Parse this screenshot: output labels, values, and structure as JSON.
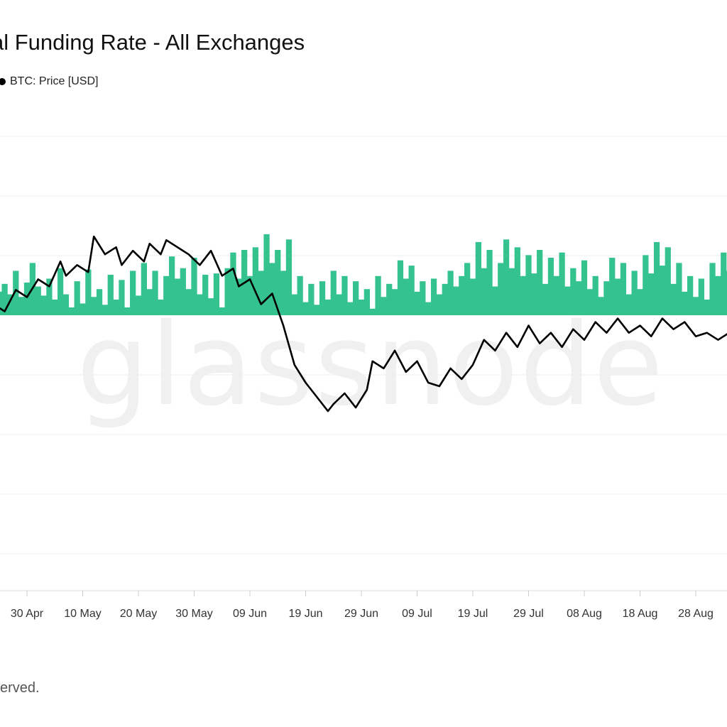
{
  "header": {
    "title": "al Funding Rate - All Exchanges"
  },
  "footer": {
    "text": "served."
  },
  "watermark": {
    "text": "glassnode"
  },
  "chart_data": {
    "type": "bar",
    "series": [
      {
        "name": "BTC: Price [USD]",
        "kind": "line",
        "color": "#000000",
        "points": [
          [
            -14,
            0.79
          ],
          [
            -12,
            0.8
          ],
          [
            -10,
            0.73
          ],
          [
            -9,
            0.76
          ],
          [
            -7,
            0.7
          ],
          [
            -6,
            0.74
          ],
          [
            -4,
            0.72
          ],
          [
            -2,
            0.78
          ],
          [
            0,
            0.76
          ],
          [
            2,
            0.81
          ],
          [
            4,
            0.79
          ],
          [
            6,
            0.86
          ],
          [
            7,
            0.82
          ],
          [
            9,
            0.85
          ],
          [
            11,
            0.83
          ],
          [
            12,
            0.93
          ],
          [
            14,
            0.88
          ],
          [
            16,
            0.9
          ],
          [
            17,
            0.85
          ],
          [
            19,
            0.89
          ],
          [
            21,
            0.86
          ],
          [
            22,
            0.91
          ],
          [
            24,
            0.88
          ],
          [
            25,
            0.92
          ],
          [
            27,
            0.9
          ],
          [
            29,
            0.88
          ],
          [
            31,
            0.85
          ],
          [
            33,
            0.89
          ],
          [
            35,
            0.82
          ],
          [
            37,
            0.84
          ],
          [
            38,
            0.79
          ],
          [
            40,
            0.81
          ],
          [
            42,
            0.74
          ],
          [
            44,
            0.77
          ],
          [
            46,
            0.68
          ],
          [
            48,
            0.57
          ],
          [
            50,
            0.52
          ],
          [
            52,
            0.48
          ],
          [
            54,
            0.44
          ],
          [
            55,
            0.46
          ],
          [
            57,
            0.49
          ],
          [
            59,
            0.45
          ],
          [
            61,
            0.5
          ],
          [
            62,
            0.58
          ],
          [
            64,
            0.56
          ],
          [
            66,
            0.61
          ],
          [
            68,
            0.55
          ],
          [
            70,
            0.58
          ],
          [
            72,
            0.52
          ],
          [
            74,
            0.51
          ],
          [
            76,
            0.56
          ],
          [
            78,
            0.53
          ],
          [
            80,
            0.57
          ],
          [
            82,
            0.64
          ],
          [
            84,
            0.61
          ],
          [
            86,
            0.66
          ],
          [
            88,
            0.62
          ],
          [
            90,
            0.68
          ],
          [
            92,
            0.63
          ],
          [
            94,
            0.66
          ],
          [
            96,
            0.62
          ],
          [
            98,
            0.67
          ],
          [
            100,
            0.64
          ],
          [
            102,
            0.69
          ],
          [
            104,
            0.66
          ],
          [
            106,
            0.7
          ],
          [
            108,
            0.66
          ],
          [
            110,
            0.68
          ],
          [
            112,
            0.65
          ],
          [
            114,
            0.7
          ],
          [
            116,
            0.67
          ],
          [
            118,
            0.69
          ],
          [
            120,
            0.65
          ],
          [
            122,
            0.66
          ],
          [
            124,
            0.64
          ],
          [
            126,
            0.66
          ],
          [
            128,
            0.63
          ],
          [
            129,
            0.67
          ],
          [
            131,
            0.63
          ],
          [
            133,
            0.62
          ],
          [
            135,
            0.79
          ],
          [
            137,
            0.82
          ],
          [
            139,
            0.86
          ],
          [
            141,
            0.82
          ],
          [
            143,
            0.85
          ],
          [
            145,
            0.8
          ],
          [
            147,
            0.83
          ],
          [
            149,
            0.79
          ],
          [
            151,
            0.8
          ]
        ]
      },
      {
        "name": "Funding Rate",
        "kind": "bar",
        "positive_color": "#34c38f",
        "negative_color": "#ef4444",
        "points": [
          [
            -14,
            0.18
          ],
          [
            -13,
            0.12
          ],
          [
            -12,
            0.22
          ],
          [
            -11,
            0.08
          ],
          [
            -10,
            0.3
          ],
          [
            -9,
            0.1
          ],
          [
            -8,
            0.34
          ],
          [
            -7,
            0.05
          ],
          [
            -6,
            0.36
          ],
          [
            -5,
            0.18
          ],
          [
            -4,
            0.24
          ],
          [
            -3,
            0.16
          ],
          [
            -2,
            0.34
          ],
          [
            -1,
            0.14
          ],
          [
            0,
            0.25
          ],
          [
            1,
            0.4
          ],
          [
            2,
            0.22
          ],
          [
            3,
            0.15
          ],
          [
            4,
            0.28
          ],
          [
            5,
            0.12
          ],
          [
            6,
            0.36
          ],
          [
            7,
            0.16
          ],
          [
            8,
            0.06
          ],
          [
            9,
            0.26
          ],
          [
            10,
            0.09
          ],
          [
            11,
            0.35
          ],
          [
            12,
            0.14
          ],
          [
            13,
            0.2
          ],
          [
            14,
            0.08
          ],
          [
            15,
            0.31
          ],
          [
            16,
            0.12
          ],
          [
            17,
            0.27
          ],
          [
            18,
            0.06
          ],
          [
            19,
            0.34
          ],
          [
            20,
            0.15
          ],
          [
            21,
            0.4
          ],
          [
            22,
            0.2
          ],
          [
            23,
            0.34
          ],
          [
            24,
            0.12
          ],
          [
            25,
            0.3
          ],
          [
            26,
            0.45
          ],
          [
            27,
            0.28
          ],
          [
            28,
            0.36
          ],
          [
            29,
            0.2
          ],
          [
            30,
            0.44
          ],
          [
            31,
            0.16
          ],
          [
            32,
            0.31
          ],
          [
            33,
            0.13
          ],
          [
            34,
            0.32
          ],
          [
            35,
            0.06
          ],
          [
            36,
            0.36
          ],
          [
            37,
            0.48
          ],
          [
            38,
            0.28
          ],
          [
            39,
            0.5
          ],
          [
            40,
            0.3
          ],
          [
            41,
            0.52
          ],
          [
            42,
            0.34
          ],
          [
            43,
            0.62
          ],
          [
            44,
            0.4
          ],
          [
            45,
            0.5
          ],
          [
            46,
            0.34
          ],
          [
            47,
            0.58
          ],
          [
            48,
            0.16
          ],
          [
            49,
            0.3
          ],
          [
            50,
            0.1
          ],
          [
            51,
            0.24
          ],
          [
            52,
            0.08
          ],
          [
            53,
            0.26
          ],
          [
            54,
            0.12
          ],
          [
            55,
            0.34
          ],
          [
            56,
            0.16
          ],
          [
            57,
            0.3
          ],
          [
            58,
            0.1
          ],
          [
            59,
            0.26
          ],
          [
            60,
            0.12
          ],
          [
            61,
            0.2
          ],
          [
            62,
            0.05
          ],
          [
            63,
            0.3
          ],
          [
            64,
            0.14
          ],
          [
            65,
            0.24
          ],
          [
            66,
            0.2
          ],
          [
            67,
            0.42
          ],
          [
            68,
            0.28
          ],
          [
            69,
            0.38
          ],
          [
            70,
            0.18
          ],
          [
            71,
            0.26
          ],
          [
            72,
            0.1
          ],
          [
            73,
            0.28
          ],
          [
            74,
            0.16
          ],
          [
            75,
            0.24
          ],
          [
            76,
            0.34
          ],
          [
            77,
            0.22
          ],
          [
            78,
            0.3
          ],
          [
            79,
            0.4
          ],
          [
            80,
            0.28
          ],
          [
            81,
            0.56
          ],
          [
            82,
            0.36
          ],
          [
            83,
            0.5
          ],
          [
            84,
            0.22
          ],
          [
            85,
            0.4
          ],
          [
            86,
            0.58
          ],
          [
            87,
            0.36
          ],
          [
            88,
            0.52
          ],
          [
            89,
            0.3
          ],
          [
            90,
            0.46
          ],
          [
            91,
            0.32
          ],
          [
            92,
            0.5
          ],
          [
            93,
            0.24
          ],
          [
            94,
            0.44
          ],
          [
            95,
            0.3
          ],
          [
            96,
            0.48
          ],
          [
            97,
            0.22
          ],
          [
            98,
            0.36
          ],
          [
            99,
            0.26
          ],
          [
            100,
            0.42
          ],
          [
            101,
            0.2
          ],
          [
            102,
            0.3
          ],
          [
            103,
            0.14
          ],
          [
            104,
            0.26
          ],
          [
            105,
            0.44
          ],
          [
            106,
            0.28
          ],
          [
            107,
            0.4
          ],
          [
            108,
            0.16
          ],
          [
            109,
            0.34
          ],
          [
            110,
            0.2
          ],
          [
            111,
            0.46
          ],
          [
            112,
            0.32
          ],
          [
            113,
            0.56
          ],
          [
            114,
            0.38
          ],
          [
            115,
            0.52
          ],
          [
            116,
            0.24
          ],
          [
            117,
            0.4
          ],
          [
            118,
            0.18
          ],
          [
            119,
            0.3
          ],
          [
            120,
            0.14
          ],
          [
            121,
            0.28
          ],
          [
            122,
            0.12
          ],
          [
            123,
            0.4
          ],
          [
            124,
            0.3
          ],
          [
            125,
            0.48
          ],
          [
            126,
            0.34
          ],
          [
            127,
            0.56
          ],
          [
            128,
            0.42
          ],
          [
            129,
            0.32
          ],
          [
            130,
            0.5
          ],
          [
            131,
            0.36
          ],
          [
            132,
            0.18
          ],
          [
            133,
            0.28
          ],
          [
            134,
            0.12
          ],
          [
            135,
            0.3
          ],
          [
            136,
            0.5
          ],
          [
            137,
            0.62
          ],
          [
            138,
            0.48
          ],
          [
            139,
            0.64
          ],
          [
            140,
            0.4
          ],
          [
            141,
            0.52
          ],
          [
            142,
            0.34
          ],
          [
            143,
            0.56
          ],
          [
            144,
            0.42
          ],
          [
            145,
            0.5
          ],
          [
            146,
            0.36
          ],
          [
            147,
            0.54
          ],
          [
            148,
            0.3
          ],
          [
            149,
            0.46
          ],
          [
            150,
            0.34
          ],
          [
            151,
            0.42
          ]
        ]
      }
    ],
    "x_ticks": [
      {
        "label": "30 Apr",
        "day": 0
      },
      {
        "label": "10 May",
        "day": 10
      },
      {
        "label": "20 May",
        "day": 20
      },
      {
        "label": "30 May",
        "day": 30
      },
      {
        "label": "09 Jun",
        "day": 40
      },
      {
        "label": "19 Jun",
        "day": 50
      },
      {
        "label": "29 Jun",
        "day": 60
      },
      {
        "label": "09 Jul",
        "day": 70
      },
      {
        "label": "19 Jul",
        "day": 80
      },
      {
        "label": "29 Jul",
        "day": 90
      },
      {
        "label": "08 Aug",
        "day": 100
      },
      {
        "label": "18 Aug",
        "day": 110
      },
      {
        "label": "28 Aug",
        "day": 120
      }
    ],
    "xlim": [
      -14,
      151
    ],
    "ylim": [
      -1,
      1
    ],
    "grid": true,
    "legend_position": "top-left"
  }
}
